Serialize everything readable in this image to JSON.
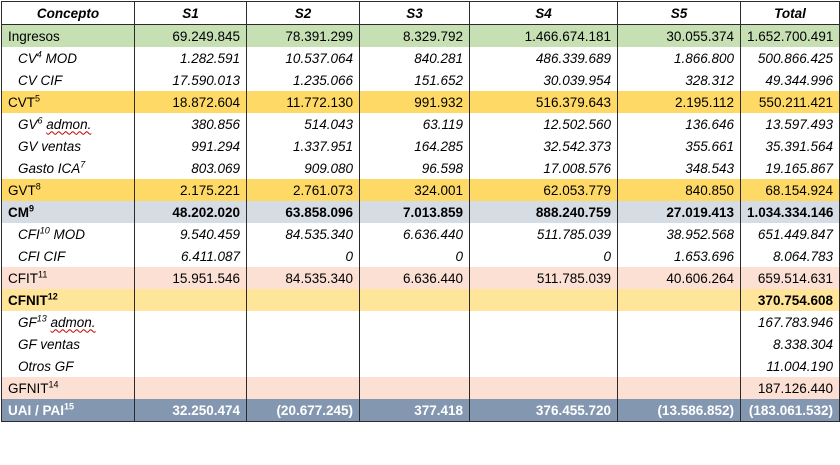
{
  "columns": [
    "Concepto",
    "S1",
    "S2",
    "S3",
    "S4",
    "S5",
    "Total"
  ],
  "colors": {
    "green": "#c6e0b4",
    "orange": "#ffd966",
    "blue_gray": "#d6dce4",
    "pink": "#fbe0d3",
    "light_orange": "#ffe599",
    "slate": "#8497b0",
    "white": "#ffffff"
  },
  "rows": [
    {
      "label": "Ingresos",
      "sup": "",
      "wavy": "",
      "rest": "",
      "style": "plain",
      "bg": "#c6e0b4",
      "values": [
        "69.249.845",
        "78.391.299",
        "8.329.792",
        "1.466.674.181",
        "30.055.374",
        "1.652.700.491"
      ]
    },
    {
      "label": "CV",
      "sup": "4",
      "wavy": "",
      "rest": " MOD",
      "style": "sub",
      "bg": "#ffffff",
      "values": [
        "1.282.591",
        "10.537.064",
        "840.281",
        "486.339.689",
        "1.866.800",
        "500.866.425"
      ]
    },
    {
      "label": "CV CIF",
      "sup": "",
      "wavy": "",
      "rest": "",
      "style": "sub",
      "bg": "#ffffff",
      "values": [
        "17.590.013",
        "1.235.066",
        "151.652",
        "30.039.954",
        "328.312",
        "49.344.996"
      ]
    },
    {
      "label": "CVT",
      "sup": "5",
      "wavy": "",
      "rest": "",
      "style": "plain",
      "bg": "#ffd966",
      "values": [
        "18.872.604",
        "11.772.130",
        "991.932",
        "516.379.643",
        "2.195.112",
        "550.211.421"
      ]
    },
    {
      "label": "GV",
      "sup": "6",
      "wavy": "admon.",
      "rest": "",
      "style": "sub",
      "bg": "#ffffff",
      "values": [
        "380.856",
        "514.043",
        "63.119",
        "12.502.560",
        "136.646",
        "13.597.493"
      ]
    },
    {
      "label": "GV ventas",
      "sup": "",
      "wavy": "",
      "rest": "",
      "style": "sub",
      "bg": "#ffffff",
      "values": [
        "991.294",
        "1.337.951",
        "164.285",
        "32.542.373",
        "355.661",
        "35.391.564"
      ]
    },
    {
      "label": "Gasto ICA",
      "sup": "7",
      "wavy": "",
      "rest": "",
      "style": "sub",
      "bg": "#ffffff",
      "values": [
        "803.069",
        "909.080",
        "96.598",
        "17.008.576",
        "348.543",
        "19.165.867"
      ]
    },
    {
      "label": "GVT",
      "sup": "8",
      "wavy": "",
      "rest": "",
      "style": "plain",
      "bg": "#ffd966",
      "values": [
        "2.175.221",
        "2.761.073",
        "324.001",
        "62.053.779",
        "840.850",
        "68.154.924"
      ]
    },
    {
      "label": "CM",
      "sup": "9",
      "wavy": "",
      "rest": "",
      "style": "bold",
      "bg": "#d6dce4",
      "values": [
        "48.202.020",
        "63.858.096",
        "7.013.859",
        "888.240.759",
        "27.019.413",
        "1.034.334.146"
      ]
    },
    {
      "label": "CFI",
      "sup": "10",
      "wavy": "",
      "rest": " MOD",
      "style": "sub",
      "bg": "#ffffff",
      "values": [
        "9.540.459",
        "84.535.340",
        "6.636.440",
        "511.785.039",
        "38.952.568",
        "651.449.847"
      ]
    },
    {
      "label": "CFI CIF",
      "sup": "",
      "wavy": "",
      "rest": "",
      "style": "sub",
      "bg": "#ffffff",
      "values": [
        "6.411.087",
        "0",
        "0",
        "0",
        "1.653.696",
        "8.064.783"
      ]
    },
    {
      "label": "CFIT",
      "sup": "11",
      "wavy": "",
      "rest": "",
      "style": "plain",
      "bg": "#fbe0d3",
      "values": [
        "15.951.546",
        "84.535.340",
        "6.636.440",
        "511.785.039",
        "40.606.264",
        "659.514.631"
      ]
    },
    {
      "label": "CFNIT",
      "sup": "12",
      "wavy": "",
      "rest": "",
      "style": "bold",
      "bg": "#ffe599",
      "values": [
        "",
        "",
        "",
        "",
        "",
        "370.754.608"
      ]
    },
    {
      "label": "GF",
      "sup": "13",
      "wavy": "admon.",
      "rest": "",
      "style": "sub",
      "bg": "#ffffff",
      "values": [
        "",
        "",
        "",
        "",
        "",
        "167.783.946"
      ]
    },
    {
      "label": "GF ventas",
      "sup": "",
      "wavy": "",
      "rest": "",
      "style": "sub",
      "bg": "#ffffff",
      "values": [
        "",
        "",
        "",
        "",
        "",
        "8.338.304"
      ]
    },
    {
      "label": "Otros GF",
      "sup": "",
      "wavy": "",
      "rest": "",
      "style": "sub",
      "bg": "#ffffff",
      "values": [
        "",
        "",
        "",
        "",
        "",
        "11.004.190"
      ]
    },
    {
      "label": "GFNIT",
      "sup": "14",
      "wavy": "",
      "rest": "",
      "style": "plain",
      "bg": "#fbe0d3",
      "values": [
        "",
        "",
        "",
        "",
        "",
        "187.126.440"
      ]
    },
    {
      "label": "UAI / PAI",
      "sup": "15",
      "wavy": "",
      "rest": "",
      "style": "bold",
      "bg": "#8497b0",
      "fg": "#ffffff",
      "values": [
        "32.250.474",
        "(20.677.245)",
        "377.418",
        "376.455.720",
        "(13.586.852)",
        "(183.061.532)"
      ]
    }
  ]
}
